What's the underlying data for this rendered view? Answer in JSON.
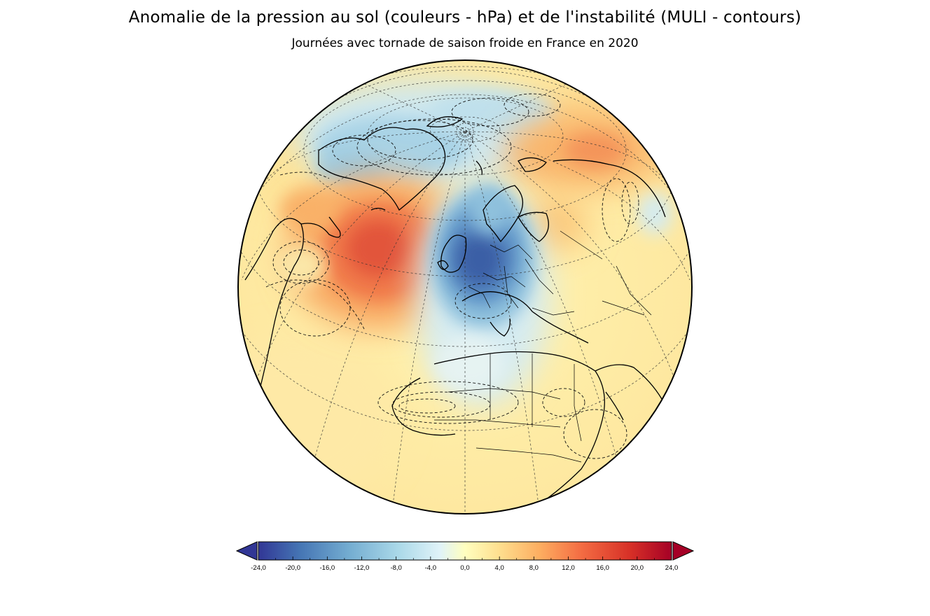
{
  "figure": {
    "title": "Anomalie de la pression au sol (couleurs - hPa) et de l'instabilité (MULI - contours)",
    "subtitle": "Journées avec tornade de saison froide en France en 2020"
  },
  "map": {
    "projection": "orthographic",
    "region": "North Atlantic, Europe, Africa",
    "fill_variable": "sea-level pressure anomaly (hPa)",
    "contour_variable": "MULI instability anomaly",
    "contour_style": "dashed black",
    "graticule": "dotted",
    "features": [
      {
        "name": "low-europe",
        "kind": "negative pressure anomaly",
        "approx_value_hPa": -22
      },
      {
        "name": "low-arctic-greenland",
        "kind": "negative pressure anomaly",
        "approx_value_hPa": -8
      },
      {
        "name": "high-north-atlantic",
        "kind": "positive pressure anomaly",
        "approx_value_hPa": 16
      },
      {
        "name": "high-siberia",
        "kind": "positive pressure anomaly",
        "approx_value_hPa": 8
      }
    ]
  },
  "colorbar": {
    "ticks": [
      "-24,0",
      "-20,0",
      "-16,0",
      "-12,0",
      "-8,0",
      "-4,0",
      "0,0",
      "4,0",
      "8,0",
      "12,0",
      "16,0",
      "20,0",
      "24,0"
    ],
    "extend": "both",
    "colors": [
      "#313695",
      "#4575b4",
      "#74add1",
      "#abd9e9",
      "#e0f3f8",
      "#ffffbf",
      "#fee090",
      "#fdae61",
      "#f46d43",
      "#d73027",
      "#a50026"
    ],
    "min": -24,
    "max": 24
  }
}
